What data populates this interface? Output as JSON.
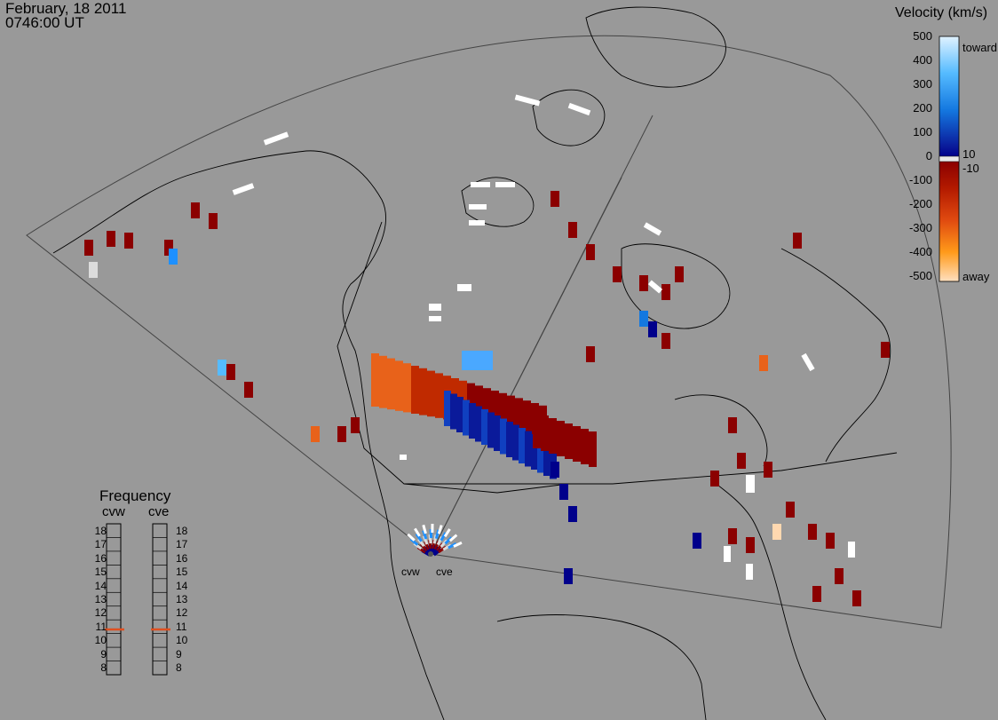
{
  "header": {
    "date": "February, 18 2011",
    "time": "0746:00 UT"
  },
  "colorbar": {
    "title": "Velocity (km/s)",
    "ticks": [
      "500",
      "400",
      "300",
      "200",
      "100",
      "0",
      "-100",
      "-200",
      "-300",
      "-400",
      "-500"
    ],
    "inner_pos_label": "10",
    "inner_neg_label": "-10",
    "toward_label": "toward",
    "away_label": "away",
    "colors": {
      "toward_light": "#d8efff",
      "toward_mid": "#1e90ff",
      "toward_dark": "#00008b",
      "ground_scatter": "#dcdcdc",
      "away_dark": "#8b0000",
      "away_mid": "#ff8c00",
      "away_light": "#ffe4c4"
    }
  },
  "frequency_panel": {
    "title": "Frequency",
    "radars": [
      {
        "name": "cvw",
        "value_mhz": 10.8
      },
      {
        "name": "cve",
        "value_mhz": 10.8
      }
    ],
    "ticks": [
      "18",
      "17",
      "16",
      "15",
      "14",
      "13",
      "12",
      "11",
      "10",
      "9",
      "8"
    ],
    "marker_color": "#e05020"
  },
  "radars": {
    "cvw_label": "cvw",
    "cve_label": "cve"
  },
  "map": {
    "background": "#999999",
    "coast_color": "#000000"
  }
}
